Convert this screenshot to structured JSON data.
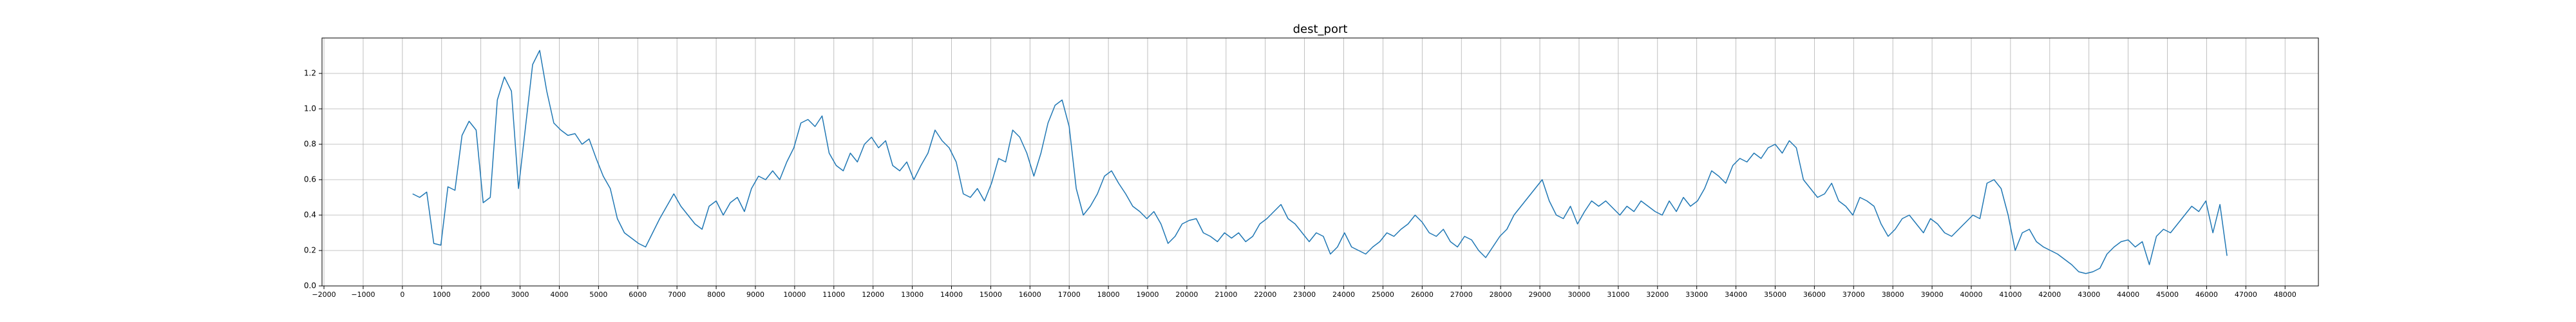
{
  "chart_data": {
    "type": "line",
    "title": "dest_port",
    "color": "#1f77b4",
    "grid": true,
    "xlim": [
      -2050,
      48850
    ],
    "ylim": [
      0,
      1.4
    ],
    "xticks": [
      {
        "value": -2000,
        "label": "−2000"
      },
      {
        "value": -1000,
        "label": "−1000"
      },
      0,
      1000,
      2000,
      3000,
      4000,
      5000,
      6000,
      7000,
      8000,
      9000,
      10000,
      11000,
      12000,
      13000,
      14000,
      15000,
      16000,
      17000,
      18000,
      19000,
      20000,
      21000,
      22000,
      23000,
      24000,
      25000,
      26000,
      27000,
      28000,
      29000,
      30000,
      31000,
      32000,
      33000,
      34000,
      35000,
      36000,
      37000,
      38000,
      39000,
      40000,
      41000,
      42000,
      43000,
      44000,
      45000,
      46000,
      47000,
      48000
    ],
    "yticks": [
      {
        "value": 0,
        "label": "0.0"
      },
      0.2,
      0.4,
      0.6,
      0.8,
      {
        "value": 1,
        "label": "1.0"
      },
      1.2
    ],
    "x": [
      260,
      440,
      620,
      800,
      980,
      1160,
      1340,
      1520,
      1700,
      1880,
      2060,
      2240,
      2420,
      2600,
      2780,
      2960,
      3140,
      3320,
      3500,
      3680,
      3860,
      4040,
      4220,
      4400,
      4580,
      4760,
      4940,
      5120,
      5300,
      5480,
      5660,
      5840,
      6020,
      6200,
      6380,
      6560,
      6740,
      6920,
      7100,
      7280,
      7460,
      7640,
      7820,
      8000,
      8180,
      8360,
      8540,
      8720,
      8900,
      9080,
      9260,
      9440,
      9620,
      9800,
      9980,
      10160,
      10340,
      10520,
      10700,
      10880,
      11060,
      11240,
      11420,
      11600,
      11780,
      11960,
      12140,
      12320,
      12500,
      12680,
      12860,
      13040,
      13220,
      13400,
      13580,
      13760,
      13940,
      14120,
      14300,
      14480,
      14660,
      14840,
      15020,
      15200,
      15380,
      15560,
      15740,
      15920,
      16100,
      16280,
      16460,
      16640,
      16820,
      17000,
      17180,
      17360,
      17540,
      17720,
      17900,
      18080,
      18260,
      18440,
      18620,
      18800,
      18980,
      19160,
      19340,
      19520,
      19700,
      19880,
      20060,
      20240,
      20420,
      20600,
      20780,
      20960,
      21140,
      21320,
      21500,
      21680,
      21860,
      22040,
      22220,
      22400,
      22580,
      22760,
      22940,
      23120,
      23300,
      23480,
      23660,
      23840,
      24020,
      24200,
      24380,
      24560,
      24740,
      24920,
      25100,
      25280,
      25460,
      25640,
      25820,
      26000,
      26180,
      26360,
      26540,
      26720,
      26900,
      27080,
      27260,
      27440,
      27620,
      27800,
      27980,
      28160,
      28340,
      28520,
      28700,
      28880,
      29060,
      29240,
      29420,
      29600,
      29780,
      29960,
      30140,
      30320,
      30500,
      30680,
      30860,
      31040,
      31220,
      31400,
      31580,
      31760,
      31940,
      32120,
      32300,
      32480,
      32660,
      32840,
      33020,
      33200,
      33380,
      33560,
      33740,
      33920,
      34100,
      34280,
      34460,
      34640,
      34820,
      35000,
      35180,
      35360,
      35540,
      35720,
      35900,
      36080,
      36260,
      36440,
      36620,
      36800,
      36980,
      37160,
      37340,
      37520,
      37700,
      37880,
      38060,
      38240,
      38420,
      38600,
      38780,
      38960,
      39140,
      39320,
      39500,
      39680,
      39860,
      40040,
      40220,
      40400,
      40580,
      40760,
      40940,
      41120,
      41300,
      41480,
      41660,
      41840,
      42020,
      42200,
      42380,
      42560,
      42740,
      42920,
      43100,
      43280,
      43460,
      43640,
      43820,
      44000,
      44180,
      44360,
      44540,
      44720,
      44900,
      45080,
      45260,
      45440,
      45620,
      45800,
      45980,
      46160,
      46340,
      46520
    ],
    "values": [
      0.52,
      0.5,
      0.53,
      0.24,
      0.23,
      0.56,
      0.54,
      0.85,
      0.93,
      0.88,
      0.47,
      0.5,
      1.05,
      1.18,
      1.1,
      0.55,
      0.9,
      1.25,
      1.33,
      1.1,
      0.92,
      0.88,
      0.85,
      0.86,
      0.8,
      0.83,
      0.72,
      0.62,
      0.55,
      0.38,
      0.3,
      0.27,
      0.24,
      0.22,
      0.3,
      0.38,
      0.45,
      0.52,
      0.45,
      0.4,
      0.35,
      0.32,
      0.45,
      0.48,
      0.4,
      0.47,
      0.5,
      0.42,
      0.55,
      0.62,
      0.6,
      0.65,
      0.6,
      0.7,
      0.78,
      0.92,
      0.94,
      0.9,
      0.96,
      0.75,
      0.68,
      0.65,
      0.75,
      0.7,
      0.8,
      0.84,
      0.78,
      0.82,
      0.68,
      0.65,
      0.7,
      0.6,
      0.68,
      0.75,
      0.88,
      0.82,
      0.78,
      0.7,
      0.52,
      0.5,
      0.55,
      0.48,
      0.58,
      0.72,
      0.7,
      0.88,
      0.84,
      0.75,
      0.62,
      0.75,
      0.92,
      1.02,
      1.05,
      0.9,
      0.55,
      0.4,
      0.45,
      0.52,
      0.62,
      0.65,
      0.58,
      0.52,
      0.45,
      0.42,
      0.38,
      0.42,
      0.35,
      0.24,
      0.28,
      0.35,
      0.37,
      0.38,
      0.3,
      0.28,
      0.25,
      0.3,
      0.27,
      0.3,
      0.25,
      0.28,
      0.35,
      0.38,
      0.42,
      0.46,
      0.38,
      0.35,
      0.3,
      0.25,
      0.3,
      0.28,
      0.18,
      0.22,
      0.3,
      0.22,
      0.2,
      0.18,
      0.22,
      0.25,
      0.3,
      0.28,
      0.32,
      0.35,
      0.4,
      0.36,
      0.3,
      0.28,
      0.32,
      0.25,
      0.22,
      0.28,
      0.26,
      0.2,
      0.16,
      0.22,
      0.28,
      0.32,
      0.4,
      0.45,
      0.5,
      0.55,
      0.6,
      0.48,
      0.4,
      0.38,
      0.45,
      0.35,
      0.42,
      0.48,
      0.45,
      0.48,
      0.44,
      0.4,
      0.45,
      0.42,
      0.48,
      0.45,
      0.42,
      0.4,
      0.48,
      0.42,
      0.5,
      0.45,
      0.48,
      0.55,
      0.65,
      0.62,
      0.58,
      0.68,
      0.72,
      0.7,
      0.75,
      0.72,
      0.78,
      0.8,
      0.75,
      0.82,
      0.78,
      0.6,
      0.55,
      0.5,
      0.52,
      0.58,
      0.48,
      0.45,
      0.4,
      0.5,
      0.48,
      0.45,
      0.35,
      0.28,
      0.32,
      0.38,
      0.4,
      0.35,
      0.3,
      0.38,
      0.35,
      0.3,
      0.28,
      0.32,
      0.36,
      0.4,
      0.38,
      0.58,
      0.6,
      0.55,
      0.4,
      0.2,
      0.3,
      0.32,
      0.25,
      0.22,
      0.2,
      0.18,
      0.15,
      0.12,
      0.08,
      0.07,
      0.08,
      0.1,
      0.18,
      0.22,
      0.25,
      0.26,
      0.22,
      0.25,
      0.12,
      0.28,
      0.32,
      0.3,
      0.35,
      0.4,
      0.45,
      0.42,
      0.48,
      0.3,
      0.46,
      0.17
    ]
  }
}
